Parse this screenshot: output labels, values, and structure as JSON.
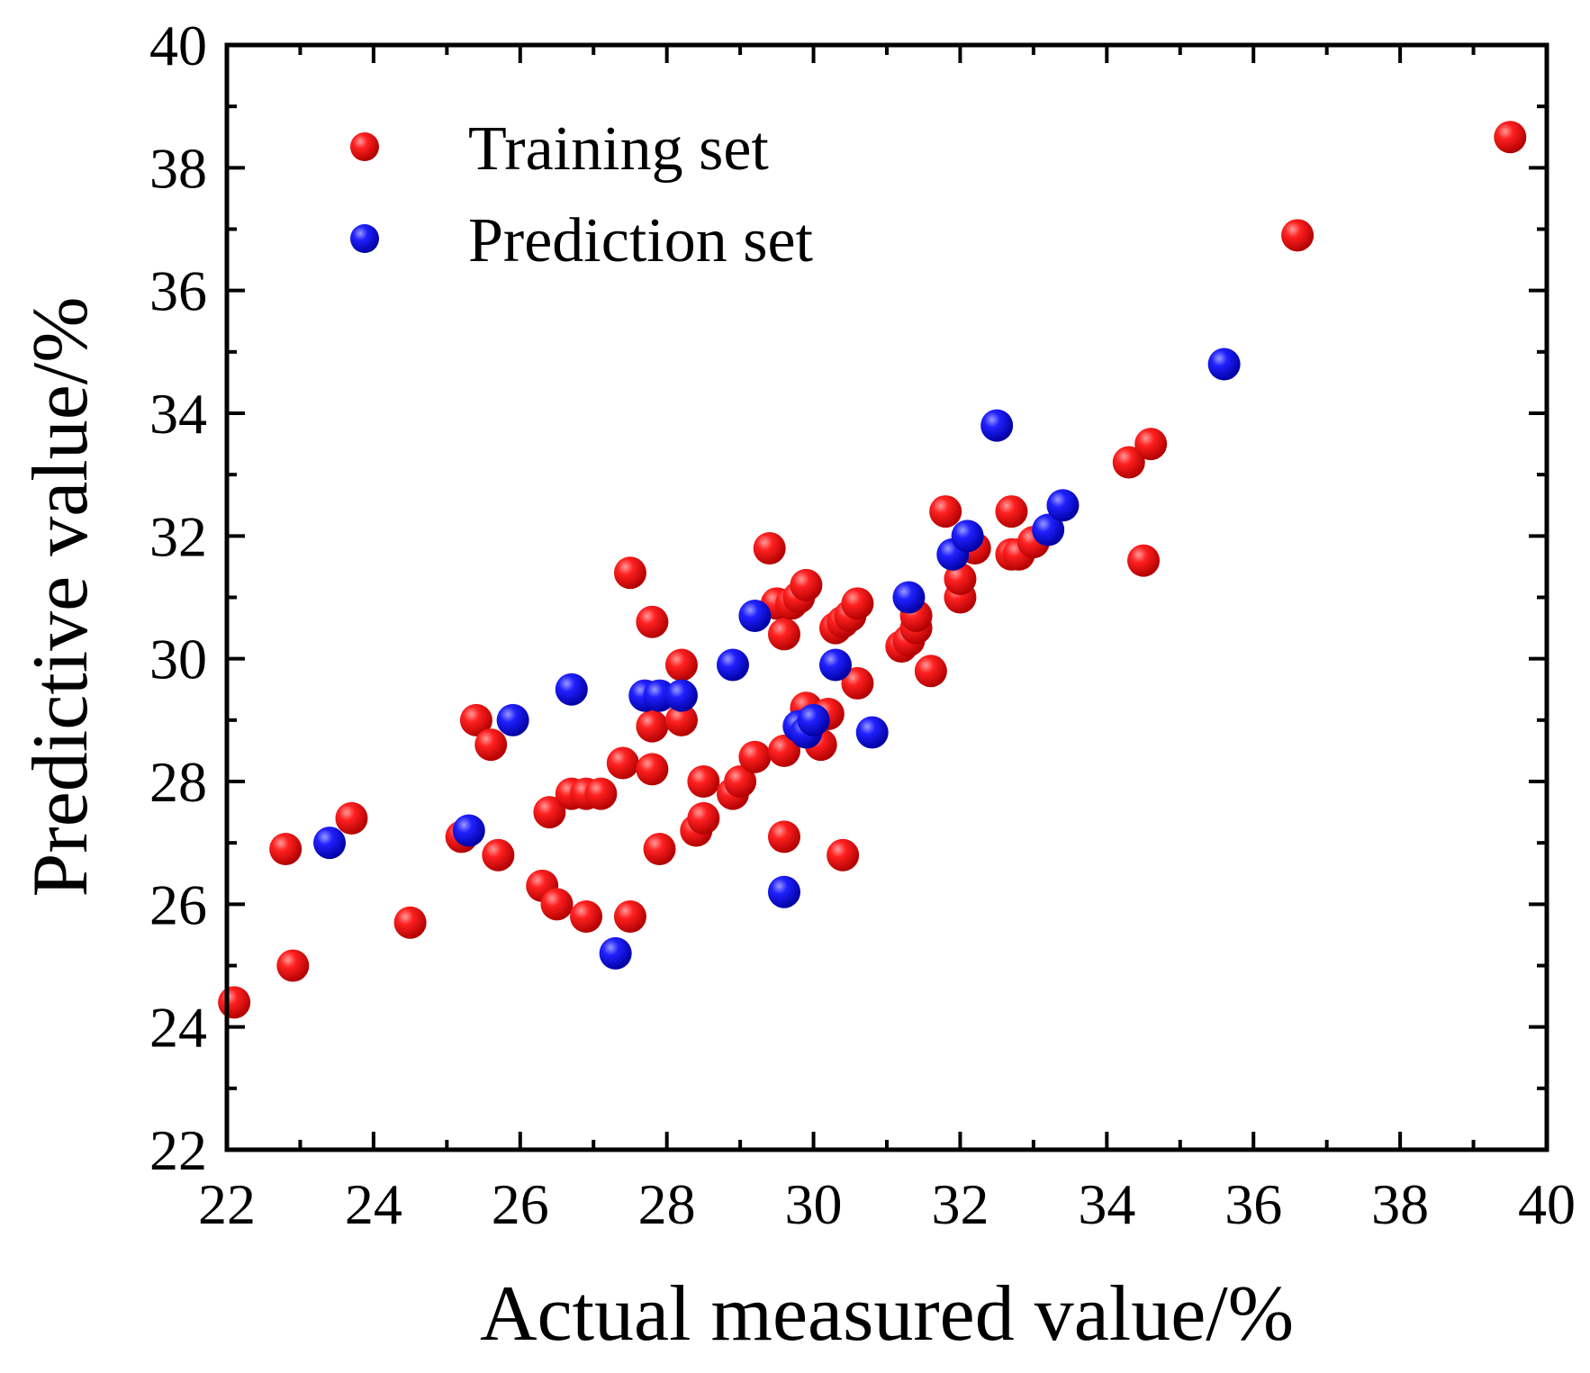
{
  "chart_data": {
    "type": "scatter",
    "title": "",
    "xlabel": "Actual measured value/%",
    "ylabel": "Predictive value/%",
    "xlim": [
      22,
      40
    ],
    "ylim": [
      22,
      40
    ],
    "xticks": [
      22,
      24,
      26,
      28,
      30,
      32,
      34,
      36,
      38,
      40
    ],
    "yticks": [
      22,
      24,
      26,
      28,
      30,
      32,
      34,
      36,
      38,
      40
    ],
    "legend_position": "top-left",
    "series": [
      {
        "name": "Training set",
        "color": "#ee1111",
        "points": [
          [
            22.1,
            24.4
          ],
          [
            22.8,
            26.9
          ],
          [
            22.9,
            25.0
          ],
          [
            23.7,
            27.4
          ],
          [
            24.5,
            25.7
          ],
          [
            25.2,
            27.1
          ],
          [
            25.4,
            29.0
          ],
          [
            25.6,
            28.6
          ],
          [
            25.7,
            26.8
          ],
          [
            26.3,
            26.3
          ],
          [
            26.4,
            27.5
          ],
          [
            26.5,
            26.0
          ],
          [
            26.7,
            27.8
          ],
          [
            26.9,
            25.8
          ],
          [
            26.9,
            27.8
          ],
          [
            27.1,
            27.8
          ],
          [
            27.4,
            28.3
          ],
          [
            27.5,
            31.4
          ],
          [
            27.5,
            25.8
          ],
          [
            27.8,
            30.6
          ],
          [
            27.8,
            28.9
          ],
          [
            27.8,
            28.2
          ],
          [
            27.9,
            26.9
          ],
          [
            28.2,
            29.9
          ],
          [
            28.2,
            29.0
          ],
          [
            28.4,
            27.2
          ],
          [
            28.5,
            27.4
          ],
          [
            28.5,
            28.0
          ],
          [
            28.9,
            27.8
          ],
          [
            29.0,
            28.0
          ],
          [
            29.2,
            28.4
          ],
          [
            29.4,
            31.8
          ],
          [
            29.5,
            30.9
          ],
          [
            29.6,
            30.4
          ],
          [
            29.6,
            28.5
          ],
          [
            29.6,
            27.1
          ],
          [
            29.7,
            30.9
          ],
          [
            29.8,
            31.0
          ],
          [
            29.9,
            31.2
          ],
          [
            29.9,
            29.2
          ],
          [
            30.1,
            28.6
          ],
          [
            30.2,
            29.1
          ],
          [
            30.3,
            30.5
          ],
          [
            30.4,
            26.8
          ],
          [
            30.4,
            30.6
          ],
          [
            30.5,
            30.7
          ],
          [
            30.6,
            29.6
          ],
          [
            30.6,
            30.9
          ],
          [
            31.2,
            30.2
          ],
          [
            31.3,
            30.3
          ],
          [
            31.4,
            30.5
          ],
          [
            31.4,
            30.7
          ],
          [
            31.6,
            29.8
          ],
          [
            31.8,
            32.4
          ],
          [
            32.0,
            31.0
          ],
          [
            32.0,
            31.3
          ],
          [
            32.2,
            31.8
          ],
          [
            32.7,
            32.4
          ],
          [
            32.7,
            31.7
          ],
          [
            32.8,
            31.7
          ],
          [
            33.0,
            31.9
          ],
          [
            34.3,
            33.2
          ],
          [
            34.5,
            31.6
          ],
          [
            34.6,
            33.5
          ],
          [
            36.6,
            36.9
          ],
          [
            39.5,
            38.5
          ]
        ]
      },
      {
        "name": "Prediction set",
        "color": "#1a1aee",
        "points": [
          [
            23.4,
            27.0
          ],
          [
            25.3,
            27.2
          ],
          [
            25.9,
            29.0
          ],
          [
            26.7,
            29.5
          ],
          [
            27.3,
            25.2
          ],
          [
            27.7,
            29.4
          ],
          [
            27.9,
            29.4
          ],
          [
            28.2,
            29.4
          ],
          [
            28.9,
            29.9
          ],
          [
            29.2,
            30.7
          ],
          [
            29.6,
            26.2
          ],
          [
            29.8,
            28.9
          ],
          [
            29.9,
            28.8
          ],
          [
            30.0,
            29.0
          ],
          [
            30.3,
            29.9
          ],
          [
            30.8,
            28.8
          ],
          [
            31.3,
            31.0
          ],
          [
            31.9,
            31.7
          ],
          [
            32.1,
            32.0
          ],
          [
            32.5,
            33.8
          ],
          [
            33.2,
            32.1
          ],
          [
            33.4,
            32.5
          ],
          [
            35.6,
            34.8
          ]
        ]
      }
    ]
  }
}
